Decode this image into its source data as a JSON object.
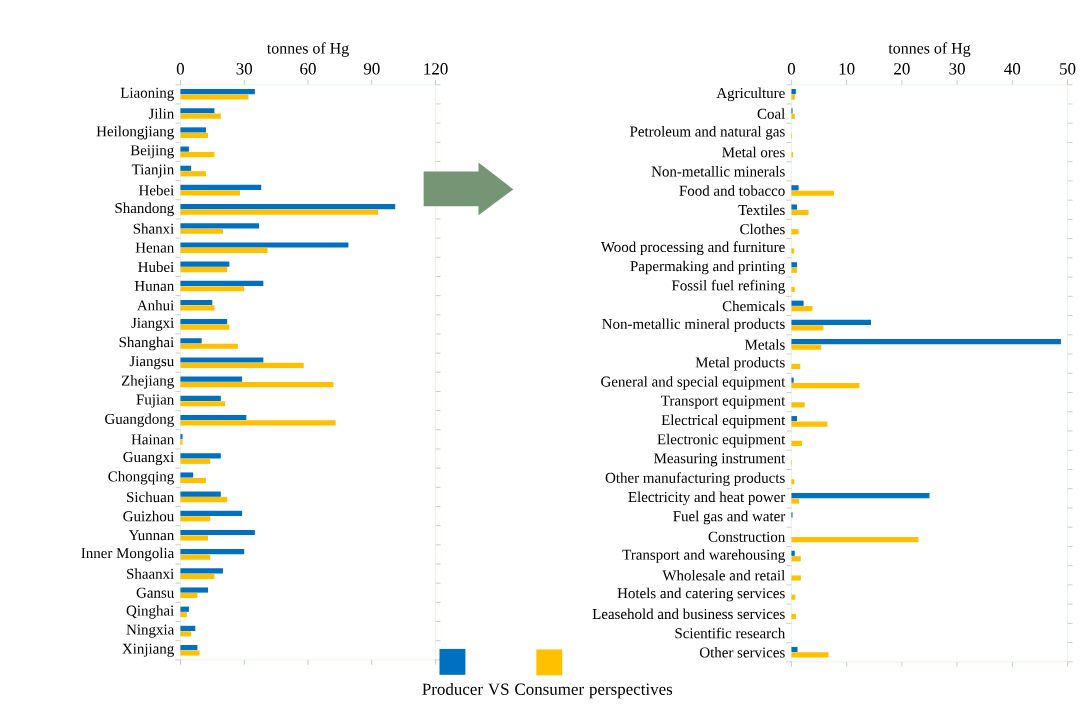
{
  "chart_data": [
    {
      "type": "bar",
      "orientation": "horizontal",
      "xlabel": "tonnes of Hg",
      "xlim": [
        0,
        120
      ],
      "xticks": [
        0,
        30,
        60,
        90,
        120
      ],
      "legend": "bottom",
      "annotations": [
        "VS",
        "perspectives"
      ],
      "categories": [
        "Liaoning",
        "Jilin",
        "Heilongjiang",
        "Beijing",
        "Tianjin",
        "Hebei",
        "Shandong",
        "Shanxi",
        "Henan",
        "Hubei",
        "Hunan",
        "Anhui",
        "Jiangxi",
        "Shanghai",
        "Jiangsu",
        "Zhejiang",
        "Fujian",
        "Guangdong",
        "Hainan",
        "Guangxi",
        "Chongqing",
        "Sichuan",
        "Guizhou",
        "Yunnan",
        "Inner Mongolia",
        "Shaanxi",
        "Gansu",
        "Qinghai",
        "Ningxia",
        "Xinjiang"
      ],
      "series": [
        {
          "name": "Producer",
          "color": "#0070c0",
          "values": [
            35,
            16,
            12,
            4,
            5,
            38,
            101,
            37,
            79,
            23,
            39,
            15,
            22,
            10,
            39,
            29,
            19,
            31,
            1,
            19,
            6,
            19,
            29,
            35,
            30,
            20,
            13,
            4,
            7,
            8
          ]
        },
        {
          "name": "Consumer",
          "color": "#ffc000",
          "values": [
            32,
            19,
            13,
            16,
            12,
            28,
            93,
            20,
            41,
            22,
            30,
            16,
            23,
            27,
            58,
            72,
            21,
            73,
            1,
            14,
            12,
            22,
            14,
            13,
            14,
            16,
            8,
            3,
            5,
            9
          ]
        }
      ]
    },
    {
      "type": "bar",
      "orientation": "horizontal",
      "xlabel": "tonnes of Hg",
      "xlim": [
        0,
        50
      ],
      "xticks": [
        0,
        10,
        20,
        30,
        40,
        50
      ],
      "categories": [
        "Agriculture",
        "Coal",
        "Petroleum and natural gas",
        "Metal ores",
        "Non-metallic minerals",
        "Food and tobacco",
        "Textiles",
        "Clothes",
        "Wood processing and furniture",
        "Papermaking and printing",
        "Fossil fuel refining",
        "Chemicals",
        "Non-metallic mineral products",
        "Metals",
        "Metal products",
        "General and special equipment",
        "Transport equipment",
        "Electrical equipment",
        "Electronic equipment",
        "Measuring instrument",
        "Other manufacturing products",
        "Electricity and heat power",
        "Fuel gas and water",
        "Construction",
        "Transport and warehousing",
        "Wholesale and retail",
        "Hotels and catering services",
        "Leasehold and business services",
        "Scientific research",
        "Other services"
      ],
      "series": [
        {
          "color": "#0070c0",
          "values": [
            0.8,
            0.2,
            0,
            0,
            0,
            1.3,
            1.0,
            0,
            0,
            1.0,
            0,
            2.2,
            14.4,
            48.8,
            0,
            0.4,
            0,
            1.0,
            0,
            0,
            0,
            25.0,
            0.2,
            0,
            0.6,
            0,
            0,
            0,
            0,
            1.1
          ]
        },
        {
          "color": "#ffc000",
          "values": [
            0.6,
            0.6,
            0.1,
            0.3,
            0,
            7.7,
            3.1,
            1.3,
            0.5,
            1.0,
            0.6,
            3.8,
            5.8,
            5.4,
            1.6,
            12.3,
            2.4,
            6.5,
            1.9,
            0.1,
            0.5,
            1.4,
            0,
            23.0,
            1.7,
            1.7,
            0.7,
            0.8,
            0,
            6.7
          ]
        }
      ]
    }
  ]
}
